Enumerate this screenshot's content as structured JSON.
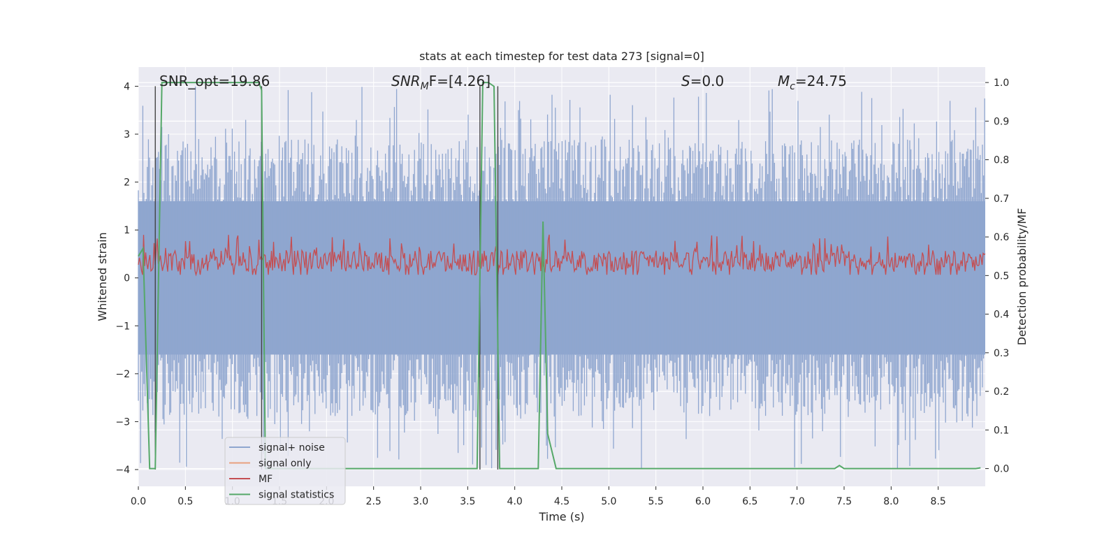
{
  "chart_data": {
    "type": "line",
    "title": "stats at each timestep for test data 273 [signal=0]",
    "xlabel": "Time (s)",
    "ylabel": "Whitened strain",
    "y2label": "Detection probability/MF",
    "xlim": [
      0.0,
      9.0
    ],
    "ylim": [
      -4.35,
      4.4
    ],
    "y2lim": [
      -0.046,
      1.04
    ],
    "x_ticks": [
      0.0,
      0.5,
      1.0,
      1.5,
      2.0,
      2.5,
      3.0,
      3.5,
      4.0,
      4.5,
      5.0,
      5.5,
      6.0,
      6.5,
      7.0,
      7.5,
      8.0,
      8.5
    ],
    "x_tick_labels": [
      "0.0",
      "0.5",
      "1.0",
      "1.5",
      "2.0",
      "2.5",
      "3.0",
      "3.5",
      "4.0",
      "4.5",
      "5.0",
      "5.5",
      "6.0",
      "6.5",
      "7.0",
      "7.5",
      "8.0",
      "8.5"
    ],
    "y_ticks": [
      -4,
      -3,
      -2,
      -1,
      0,
      1,
      2,
      3,
      4
    ],
    "y_tick_labels": [
      "−4",
      "−3",
      "−2",
      "−1",
      "0",
      "1",
      "2",
      "3",
      "4"
    ],
    "y2_ticks": [
      0.0,
      0.1,
      0.2,
      0.3,
      0.4,
      0.5,
      0.6,
      0.7,
      0.8,
      0.9,
      1.0
    ],
    "y2_tick_labels": [
      "0.0",
      "0.1",
      "0.2",
      "0.3",
      "0.4",
      "0.5",
      "0.6",
      "0.7",
      "0.8",
      "0.9",
      "1.0"
    ],
    "annotations": {
      "snr_opt": "SNR_opt=19.86",
      "snr_mf": "SNR",
      "snr_mf_sub": "M",
      "snr_mf_rest": "F=[4.26]",
      "s_sym": "S",
      "s_val": "=0.0",
      "mc_sym": "M",
      "mc_sub": "c",
      "mc_val": "=24.75"
    },
    "legend": {
      "placement": "lower-left",
      "entries": [
        "signal+ noise",
        "signal only",
        "MF",
        "signal statistics"
      ]
    },
    "colors": {
      "signal_noise": "#8fa6cf",
      "signal_only": "#e8a07f",
      "mf": "#c44e52",
      "signal_statistics": "#55a868",
      "vlines": "#444444",
      "background": "#eaeaf2",
      "grid": "#ffffff"
    },
    "series": [
      {
        "name": "signal+ noise",
        "description_values": "noisy whitened strain, roughly symmetric about 0",
        "band_core": [
          -1.6,
          1.6
        ],
        "peak_range": [
          -4.0,
          4.0
        ]
      },
      {
        "name": "signal only",
        "values": []
      },
      {
        "name": "MF",
        "band": [
          0.5,
          0.6
        ],
        "peak_max": 0.61
      },
      {
        "name": "signal statistics",
        "axis": "right",
        "x": [
          0.0,
          0.05,
          0.12,
          0.18,
          0.25,
          0.3,
          1.28,
          1.31,
          1.35,
          1.4,
          3.6,
          3.66,
          3.72,
          3.78,
          3.84,
          3.9,
          4.25,
          4.3,
          4.35,
          4.44,
          7.4,
          7.45,
          7.5,
          8.9,
          8.95
        ],
        "y": [
          0.55,
          0.57,
          0.0,
          0.0,
          1.0,
          1.0,
          1.0,
          0.98,
          0.0,
          0.0,
          0.0,
          1.0,
          1.0,
          0.99,
          0.0,
          0.0,
          0.0,
          0.64,
          0.09,
          0.0,
          0.0,
          0.008,
          0.0,
          0.0,
          0.002
        ]
      }
    ],
    "vlines_x": [
      0.18,
      1.31,
      3.63,
      3.82
    ]
  }
}
